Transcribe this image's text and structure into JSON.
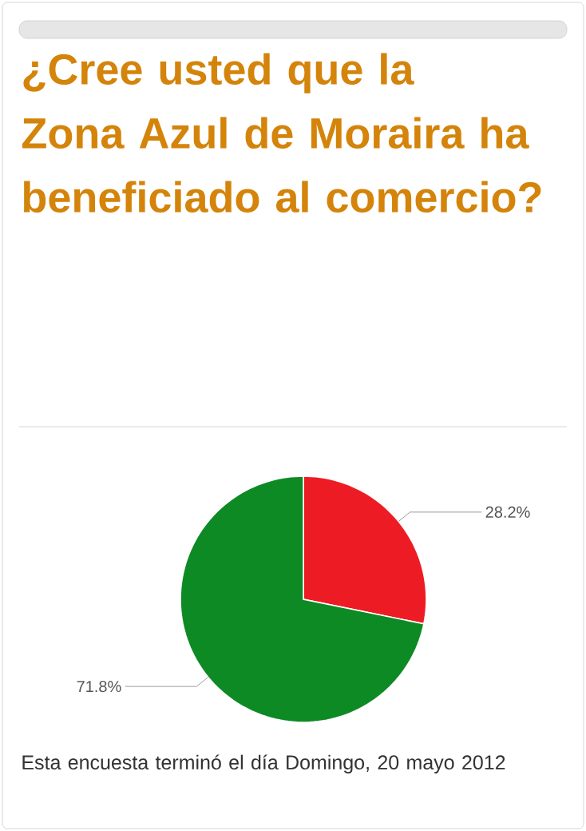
{
  "chart_data": {
    "type": "pie",
    "title": "¿Cree usted que la Zona Azul de Moraira ha beneficiado al comercio?",
    "categories": [
      null,
      null
    ],
    "values": [
      28.2,
      71.8
    ],
    "colors": [
      "#ed1c24",
      "#0e8a24"
    ],
    "value_labels": [
      "28.2%",
      "71.8%"
    ],
    "annotations": [
      "Esta encuesta terminó el día Domingo, 20 mayo 2012"
    ]
  }
}
